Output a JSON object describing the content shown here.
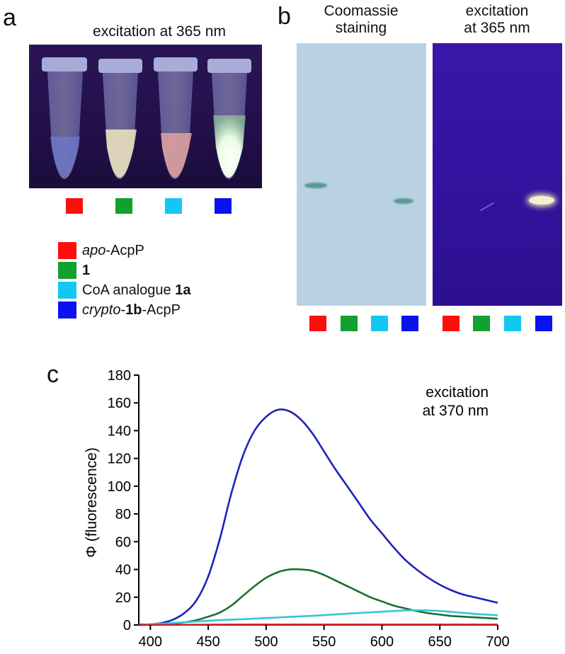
{
  "panel_a": {
    "letter": "a",
    "caption": "excitation at 365 nm"
  },
  "panel_b": {
    "letter": "b",
    "caption_left_1": "Coomassie",
    "caption_left_2": "staining",
    "caption_right_1": "excitation",
    "caption_right_2": "at 365 nm"
  },
  "panel_c": {
    "letter": "c"
  },
  "colors": {
    "red": "#ff0d0d",
    "green": "#11a12f",
    "cyan": "#12c8f2",
    "blue": "#0a12ee",
    "line_blue": "#1d23b8",
    "line_green": "#1d6e2d",
    "line_cyan": "#34c6d8",
    "line_red": "#d22020"
  },
  "legend": [
    {
      "prefix_italic": "apo",
      "bold": "",
      "text": "-AcpP",
      "color": "red"
    },
    {
      "prefix_italic": "",
      "bold": "1",
      "text": "",
      "color": "green"
    },
    {
      "prefix_italic": "",
      "bold": "1a",
      "text": "CoA analogue ",
      "color": "cyan"
    },
    {
      "prefix_italic": "crypto",
      "bold": "1b",
      "text": "-AcpP",
      "color": "blue"
    }
  ],
  "chart_data": {
    "type": "line",
    "annotation_1": "excitation",
    "annotation_2": "at 370 nm",
    "ylabel": "Φ (fluorescence)",
    "xlim": [
      390,
      700
    ],
    "ylim": [
      0,
      180
    ],
    "xticks": [
      "400",
      "450",
      "500",
      "550",
      "600",
      "650",
      "700"
    ],
    "yticks": [
      "0",
      "20",
      "40",
      "60",
      "80",
      "100",
      "120",
      "140",
      "160",
      "180"
    ],
    "series": [
      {
        "color": "line_blue",
        "x": [
          390,
          400,
          410,
          420,
          430,
          440,
          450,
          460,
          470,
          480,
          490,
          500,
          510,
          520,
          530,
          540,
          550,
          560,
          570,
          580,
          590,
          600,
          610,
          620,
          630,
          640,
          650,
          660,
          670,
          680,
          690,
          700
        ],
        "y": [
          0.3,
          0.5,
          1.5,
          4,
          9,
          18,
          35,
          62,
          95,
          122,
          140,
          150,
          155,
          154,
          148,
          138,
          125,
          112,
          100,
          88,
          76,
          66,
          56,
          47,
          40,
          34,
          29,
          25,
          22,
          20,
          18,
          16
        ]
      },
      {
        "color": "line_green",
        "x": [
          390,
          400,
          410,
          420,
          430,
          440,
          450,
          460,
          470,
          480,
          490,
          500,
          510,
          520,
          530,
          540,
          550,
          560,
          570,
          580,
          590,
          600,
          610,
          620,
          630,
          640,
          650,
          660,
          670,
          680,
          690,
          700
        ],
        "y": [
          0,
          0.2,
          0.5,
          1,
          2,
          3.5,
          6,
          9,
          14,
          21,
          28,
          34,
          38,
          40,
          40,
          39,
          36,
          32,
          28,
          24,
          20,
          17,
          14,
          12,
          10,
          8.5,
          7.5,
          6.5,
          6,
          5.5,
          5,
          4.5
        ]
      },
      {
        "color": "line_cyan",
        "x": [
          390,
          400,
          420,
          440,
          460,
          480,
          500,
          520,
          540,
          560,
          580,
          600,
          620,
          640,
          660,
          680,
          700
        ],
        "y": [
          0,
          0.5,
          1.5,
          2.5,
          3.5,
          4.2,
          5,
          5.8,
          6.6,
          7.6,
          8.6,
          9.6,
          10.5,
          10.5,
          9.5,
          8,
          7
        ]
      },
      {
        "color": "line_red",
        "x": [
          390,
          450,
          500,
          550,
          600,
          650,
          700
        ],
        "y": [
          0,
          0.2,
          0.3,
          0.3,
          0.3,
          0.3,
          0.3
        ]
      }
    ]
  }
}
